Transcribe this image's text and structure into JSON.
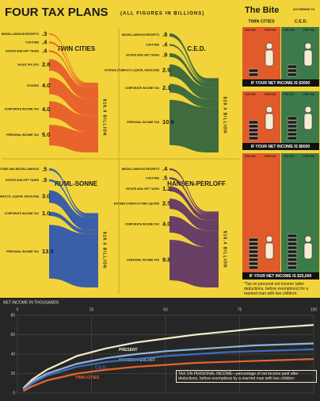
{
  "title": "FOUR TAX PLANS",
  "subtitle": "(ALL FIGURES IN BILLIONS)",
  "bite": {
    "title": "The Bite",
    "subtitle": "ACCORDING TO",
    "columns": [
      "TWIN CITIES",
      "C.E.D."
    ],
    "for_tax": "FOR TAX",
    "for_you": "FOR YOU",
    "rows": [
      "IF YOUR NET INCOME IS $3000",
      "IF YOUR NET INCOME IS $8000",
      "IF YOUR NET INCOME IS $25,000"
    ],
    "footnote": "*Tax on personal net income (after deductions, before exemptions) for a married man with two children."
  },
  "chart_data": [
    {
      "type": "sankey",
      "title": "TWIN CITIES",
      "color": "#e8642c",
      "total_label": "$16.9 BILLION",
      "categories": [
        "MISCELLANEOUS RECEIPTS",
        "CUSTOMS",
        "ESTATE AND GIFT TAXES",
        "SALES TAX (3%)",
        "EXCISES",
        "CORPORATE INCOME TAX",
        "PERSONAL INCOME TAX"
      ],
      "values": [
        0.3,
        0.4,
        0.4,
        2.8,
        4.0,
        4.0,
        5.0
      ],
      "value_labels": [
        ".3",
        ".4",
        ".4",
        "2.8",
        "4.0",
        "4.0",
        "5.0"
      ]
    },
    {
      "type": "sankey",
      "title": "C.E.D.",
      "color": "#3f6b3e",
      "total_label": "$18.0 BILLION",
      "categories": [
        "MISCELLANEOUS RECEIPTS",
        "CUSTOMS",
        "ESTATE AND GIFT TAXES",
        "EXCISES (TOBACCO LIQUOR, GASOLINE)",
        "CORPORATE INCOME TAX",
        "PERSONAL INCOME TAX"
      ],
      "values": [
        0.8,
        0.4,
        0.9,
        2.9,
        2.1,
        10.9
      ],
      "value_labels": [
        ".8",
        ".4",
        ".9",
        "2.9",
        "2.1",
        "10.9"
      ]
    },
    {
      "type": "sankey",
      "title": "RUML-SONNE",
      "color": "#3a5fa8",
      "total_label": "$18.0 BILLION",
      "categories": [
        "CUSTOMS AND MISCELLANEOUS",
        "ESTATE AND GIFT TAXES",
        "EXCISES (TOBACCO, LIQUOR, GASOLINE)",
        "CORPORATE INCOME TAX",
        "PERSONAL INCOME TAX"
      ],
      "values": [
        0.5,
        0.5,
        3.0,
        1.0,
        13.0
      ],
      "value_labels": [
        ".5",
        ".5",
        "3.0",
        "1.0",
        "13.0"
      ]
    },
    {
      "type": "sankey",
      "title": "HANSEN-PERLOFF",
      "color": "#6a3f66",
      "total_label": "$18.4 BILLION",
      "categories": [
        "MISCELLANEOUS RECEIPTS",
        "CUSTOMS",
        "ESTATE AND GIFT TAXES",
        "EXCISES (TOBACCO AND LIQUOR)",
        "CORPORATE INCOME TAX",
        "PERSONAL INCOME TAX"
      ],
      "values": [
        0.4,
        0.5,
        1.2,
        2.5,
        4.0,
        9.8
      ],
      "value_labels": [
        ".4",
        ".5",
        "1.2",
        "2.5",
        "4.0",
        "9.8"
      ]
    },
    {
      "type": "line",
      "x_label": "NET INCOME IN THOUSANDS",
      "note": "TAX ON PERSONAL INCOME—percentage of net income paid after deductions, before exemptions by a married man with two children",
      "x": [
        2,
        5,
        10,
        20,
        30,
        40,
        50,
        60,
        70,
        80,
        90,
        100
      ],
      "xlim": [
        0,
        100
      ],
      "xticks": [
        0,
        25,
        50,
        75,
        100
      ],
      "ylim": [
        0,
        80
      ],
      "yticks": [
        0,
        20,
        40,
        60,
        80
      ],
      "grid": true,
      "series": [
        {
          "name": "PRESENT",
          "color": "#f3ecc8",
          "values": [
            5,
            14,
            24,
            38,
            46,
            52,
            56,
            60,
            63,
            66,
            68,
            70
          ]
        },
        {
          "name": "HANSEN-PERLOFF",
          "color": "#8fb4d8",
          "values": [
            4,
            12,
            20,
            30,
            36,
            40,
            43,
            45,
            47,
            49,
            50,
            51
          ]
        },
        {
          "name": "C.E.D.",
          "color": "#3b6fc0",
          "values": [
            3,
            10,
            18,
            27,
            32,
            35,
            38,
            40,
            42,
            43,
            44,
            45
          ]
        },
        {
          "name": "TWIN CITIES",
          "color": "#e8642c",
          "values": [
            2,
            7,
            13,
            20,
            24,
            27,
            29,
            31,
            32,
            33,
            34,
            35
          ]
        }
      ]
    }
  ]
}
